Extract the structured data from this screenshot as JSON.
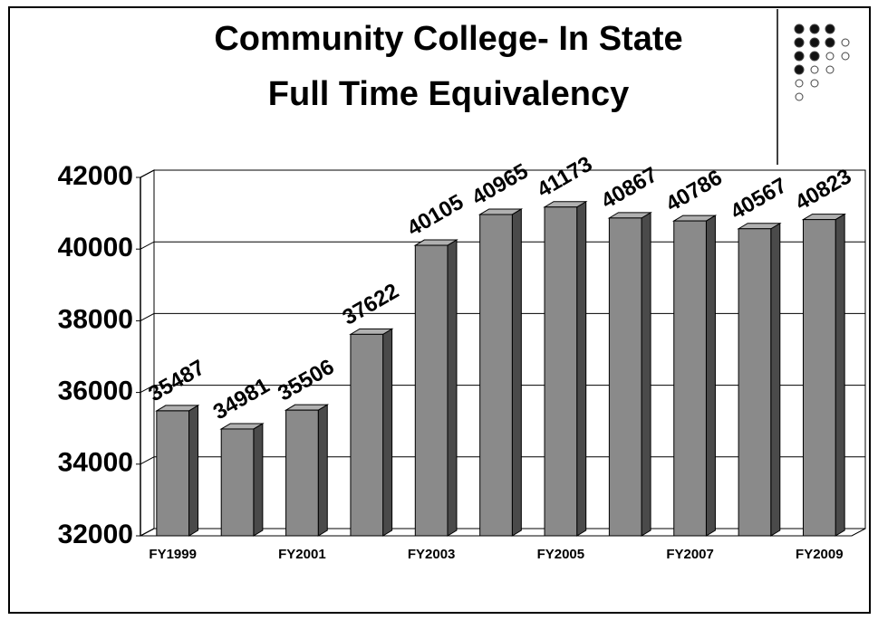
{
  "chart_data": {
    "type": "bar3d",
    "title": "Community College- In State",
    "subtitle": "Full Time Equivalency",
    "categories": [
      "FY1999",
      null,
      "FY2001",
      null,
      "FY2003",
      null,
      "FY2005",
      null,
      "FY2007",
      null,
      "FY2009"
    ],
    "values": [
      35487,
      34981,
      35506,
      37622,
      40105,
      40965,
      41173,
      40867,
      40786,
      40567,
      40823
    ],
    "color": "#8a8a8a",
    "ylim": [
      32000,
      42000
    ],
    "yticks": [
      32000,
      34000,
      36000,
      38000,
      40000,
      42000
    ],
    "grid": true
  }
}
